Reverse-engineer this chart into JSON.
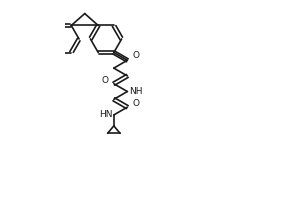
{
  "background_color": "#ffffff",
  "line_color": "#1a1a1a",
  "line_width": 1.2,
  "figure_width": 3.0,
  "figure_height": 2.0,
  "dpi": 100,
  "xlim": [
    -0.5,
    5.5
  ],
  "ylim": [
    -4.5,
    2.5
  ]
}
